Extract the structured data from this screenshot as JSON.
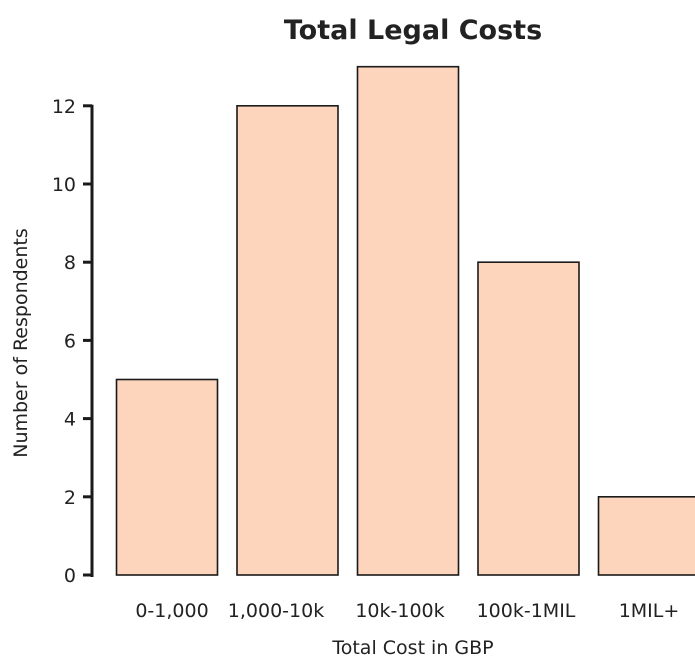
{
  "colors": {
    "bar_fill": "#fdd4bc",
    "bar_stroke": "#1a1a1a",
    "axis": "#1a1a1a",
    "text": "#222222"
  },
  "chart_data": {
    "type": "bar",
    "title": "Total Legal Costs",
    "xlabel": "Total Cost in GBP",
    "ylabel": "Number of Respondents",
    "categories": [
      "0-1,000",
      "1,000-10k",
      "10k-100k",
      "100k-1MIL",
      "1MIL+"
    ],
    "values": [
      5,
      12,
      13,
      8,
      2
    ],
    "ylim": [
      0,
      13
    ],
    "yticks": [
      0,
      2,
      4,
      6,
      8,
      10,
      12
    ],
    "grid": false,
    "legend": "none"
  }
}
